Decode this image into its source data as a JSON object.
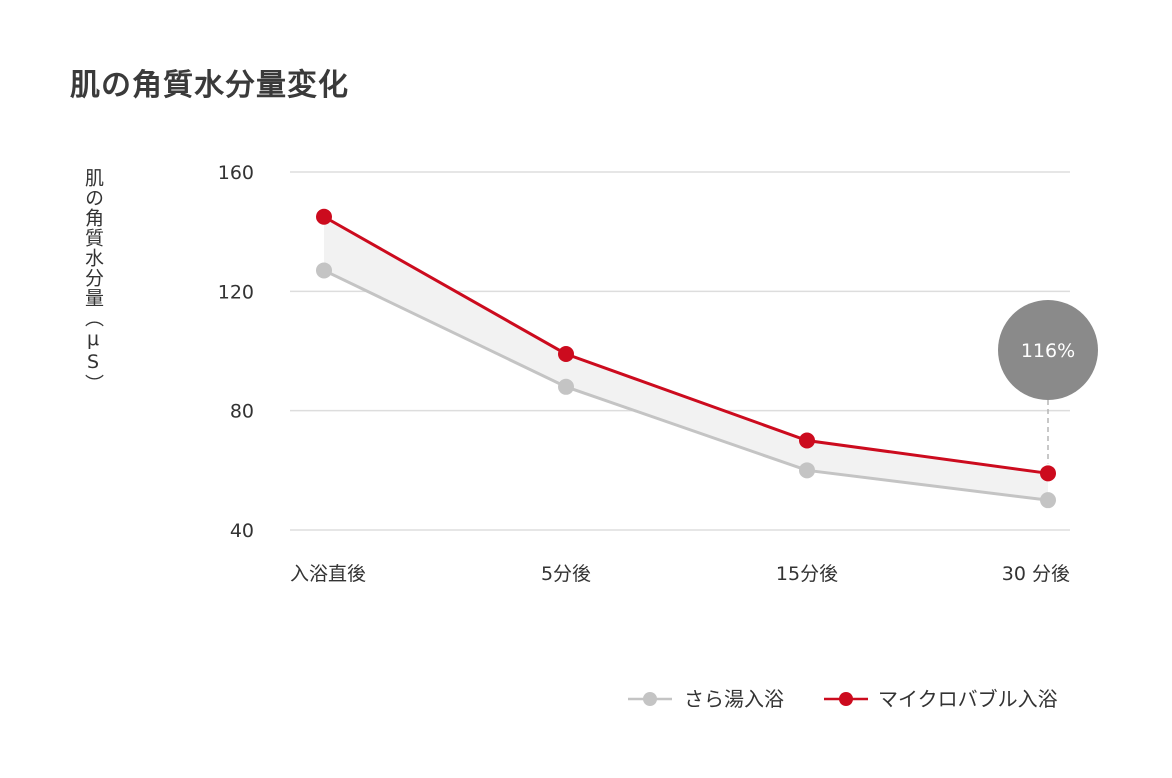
{
  "chart_data": {
    "type": "line",
    "title": "肌の角質水分量変化",
    "ylabel": "肌の角質水分量（μS）",
    "xlabel": "",
    "categories": [
      "入浴直後",
      "5分後",
      "15分後",
      "30 分後"
    ],
    "ylim": [
      40,
      160
    ],
    "yticks": [
      40,
      80,
      120,
      160
    ],
    "grid": true,
    "legend_position": "bottom-right",
    "series": [
      {
        "name": "さら湯入浴",
        "color": "#c4c4c4",
        "values": [
          127,
          88,
          60,
          50
        ]
      },
      {
        "name": "マイクロバブル入浴",
        "color": "#cc0b1e",
        "values": [
          145,
          99,
          70,
          59
        ]
      }
    ],
    "band_fill": "#f2f2f2",
    "annotation": {
      "text": "116%",
      "category": "30 分後",
      "color": "#8a8a8a"
    }
  }
}
